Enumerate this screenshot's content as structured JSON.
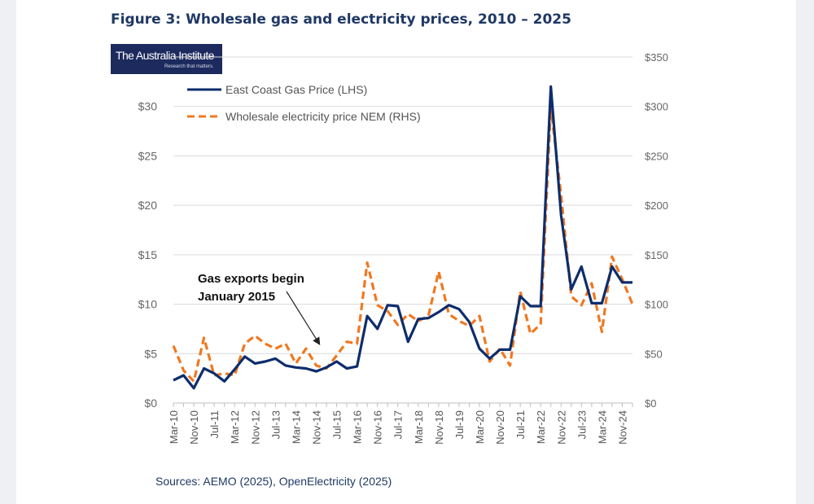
{
  "figure": {
    "title": "Figure 3: Wholesale gas and electricity prices, 2010 – 2025",
    "source": "Sources: AEMO (2025), OpenElectricity (2025)"
  },
  "logo": {
    "name": "The Australia Institute",
    "tagline": "Research that matters."
  },
  "chart_data": {
    "type": "line",
    "title": "Wholesale gas and electricity prices, 2010 – 2025",
    "x": [
      "Mar-10",
      "Jul-10",
      "Nov-10",
      "Mar-11",
      "Jul-11",
      "Nov-11",
      "Mar-12",
      "Jul-12",
      "Nov-12",
      "Mar-13",
      "Jul-13",
      "Nov-13",
      "Mar-14",
      "Jul-14",
      "Nov-14",
      "Mar-15",
      "Jul-15",
      "Nov-15",
      "Mar-16",
      "Jul-16",
      "Nov-16",
      "Mar-17",
      "Jul-17",
      "Nov-17",
      "Mar-18",
      "Jul-18",
      "Nov-18",
      "Mar-19",
      "Jul-19",
      "Nov-19",
      "Mar-20",
      "Jul-20",
      "Nov-20",
      "Mar-21",
      "Jul-21",
      "Nov-21",
      "Mar-22",
      "Jul-22",
      "Nov-22",
      "Mar-23",
      "Jul-23",
      "Nov-23",
      "Mar-24",
      "Jul-24",
      "Nov-24",
      "Mar-25"
    ],
    "x_tick_labels": [
      "Mar-10",
      "Nov-10",
      "Jul-11",
      "Mar-12",
      "Nov-12",
      "Jul-13",
      "Mar-14",
      "Nov-14",
      "Jul-15",
      "Mar-16",
      "Nov-16",
      "Jul-17",
      "Mar-18",
      "Nov-18",
      "Jul-19",
      "Mar-20",
      "Nov-20",
      "Jul-21",
      "Mar-22",
      "Nov-22",
      "Jul-23",
      "Mar-24",
      "Nov-24"
    ],
    "series": [
      {
        "name": "East Coast Gas Price (LHS)",
        "axis": "left",
        "color": "#0d2d6c",
        "style": "solid",
        "values": [
          2.3,
          2.8,
          1.5,
          3.5,
          3.0,
          2.2,
          3.4,
          4.7,
          4.0,
          4.2,
          4.5,
          3.8,
          3.6,
          3.5,
          3.2,
          3.6,
          4.2,
          3.5,
          3.7,
          8.8,
          7.5,
          9.9,
          9.8,
          6.2,
          8.5,
          8.6,
          9.2,
          9.9,
          9.5,
          8.2,
          5.5,
          4.5,
          5.4,
          5.4,
          10.8,
          9.8,
          9.8,
          32.0,
          19.0,
          11.5,
          13.8,
          10.1,
          10.1,
          13.8,
          12.2,
          12.2
        ]
      },
      {
        "name": "Wholesale electricity price NEM (RHS)",
        "axis": "right",
        "color": "#f07820",
        "style": "dashed",
        "values": [
          58,
          33,
          22,
          66,
          28,
          30,
          28,
          60,
          68,
          60,
          55,
          60,
          40,
          55,
          38,
          35,
          48,
          62,
          60,
          142,
          99,
          93,
          79,
          90,
          83,
          88,
          133,
          90,
          83,
          78,
          88,
          42,
          55,
          38,
          113,
          70,
          80,
          300,
          210,
          108,
          99,
          121,
          72,
          148,
          125,
          100
        ]
      }
    ],
    "y_left": {
      "label": "",
      "ylim": [
        0,
        35
      ],
      "ticks": [
        "$0",
        "$5",
        "$10",
        "$15",
        "$20",
        "$25",
        "$30"
      ]
    },
    "y_right": {
      "label": "",
      "ylim": [
        0,
        350
      ],
      "ticks": [
        "$0",
        "$50",
        "$100",
        "$150",
        "$200",
        "$250",
        "$300",
        "$350"
      ]
    },
    "legend": [
      "East Coast Gas Price (LHS)",
      "Wholesale electricity price NEM (RHS)"
    ],
    "legend_position": "top-left",
    "grid": true,
    "annotation": {
      "line1": "Gas exports begin",
      "line2": "January 2015",
      "target": "Nov-14"
    }
  }
}
